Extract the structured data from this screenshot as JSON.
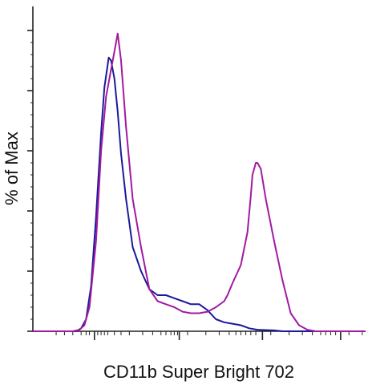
{
  "chart_data": {
    "type": "line",
    "title": "",
    "xlabel": "CD11b Super Bright 702",
    "ylabel": "% of Max",
    "xlim": [
      0,
      100
    ],
    "ylim": [
      0,
      100
    ],
    "x_scale": "biexponential",
    "grid": false,
    "legend": "none",
    "series": [
      {
        "color": "#1a1a9c",
        "x": [
          0,
          13,
          14.5,
          16,
          17.5,
          19,
          20.5,
          21.5,
          22.8,
          23.5,
          24.5,
          25.5,
          26.5,
          28,
          30,
          32.5,
          35,
          37.5,
          40,
          42.5,
          45,
          47.5,
          50,
          52.5,
          55,
          57.5,
          60,
          62.5,
          65,
          67.5,
          72.5,
          75,
          80,
          100
        ],
        "y": [
          0,
          0,
          1,
          4,
          15,
          38,
          66,
          81,
          91,
          90,
          84,
          73,
          59,
          44,
          28,
          20,
          14,
          12,
          12,
          11,
          10,
          9,
          9,
          7,
          4,
          3,
          2.5,
          2,
          1,
          0.5,
          0.3,
          0,
          0,
          0
        ]
      },
      {
        "color": "#a21aa0",
        "x": [
          0,
          12,
          14,
          15.5,
          17,
          19,
          20.5,
          22,
          23.5,
          24.5,
          25.5,
          26.5,
          28,
          30,
          32.5,
          35,
          37.5,
          40,
          42.5,
          45,
          47.5,
          50,
          52.5,
          55,
          57.5,
          58.5,
          60,
          62.5,
          64.5,
          65.5,
          66,
          67,
          67.5,
          68.5,
          70,
          72.5,
          75,
          77.5,
          80,
          82.5,
          85,
          100
        ],
        "y": [
          0,
          0,
          0.5,
          2,
          8,
          30,
          60,
          78,
          87,
          93,
          99,
          90,
          68,
          44,
          28,
          14,
          10,
          9,
          8,
          6.5,
          6,
          6,
          6.5,
          8,
          10,
          12,
          16,
          22,
          33,
          45,
          52,
          56,
          56,
          54,
          44,
          30,
          17,
          6,
          2,
          0.5,
          0,
          0
        ]
      }
    ]
  }
}
